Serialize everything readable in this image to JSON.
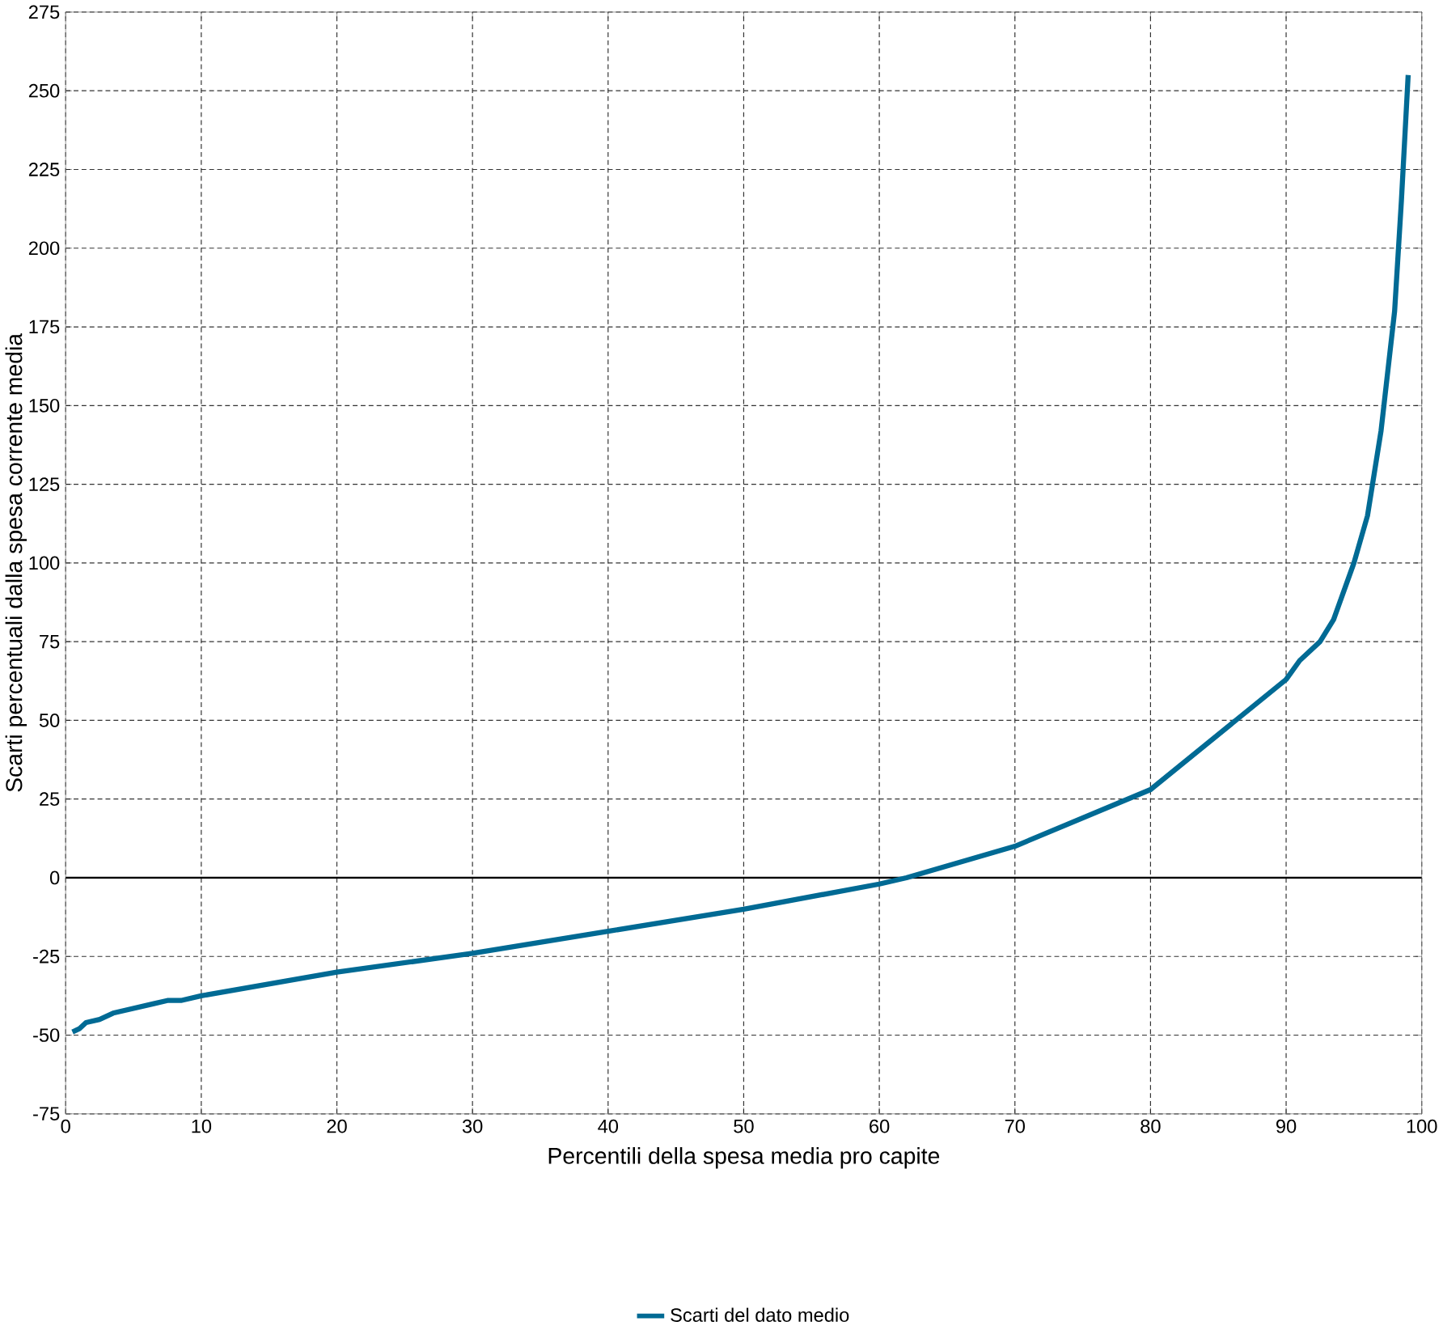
{
  "chart_data": {
    "type": "line",
    "xlabel": "Percentili della spesa media pro capite",
    "ylabel": "Scarti percentuali dalla spesa corrente media",
    "xlim": [
      0,
      100
    ],
    "xticks": [
      0,
      10,
      20,
      30,
      40,
      50,
      60,
      70,
      80,
      90,
      100
    ],
    "ylim": [
      -75,
      275
    ],
    "yticks": [
      -75,
      -50,
      -25,
      0,
      25,
      50,
      75,
      100,
      125,
      150,
      175,
      200,
      225,
      250,
      275
    ],
    "grid": true,
    "legend": "bottom",
    "marker": "none",
    "line_style": "solid",
    "ref_lines": [
      {
        "axis": "y",
        "value": 0,
        "color": "#000000"
      }
    ],
    "series": [
      {
        "name": "Scarti del dato medio",
        "color": "#006a94",
        "x": [
          0.5,
          1,
          1.5,
          2.5,
          3.5,
          5,
          6.5,
          7.5,
          8.5,
          10,
          20,
          30,
          40,
          50,
          60,
          62,
          70,
          80,
          90,
          91,
          92.5,
          93.5,
          95,
          96,
          97,
          98,
          98.5,
          99
        ],
        "values": [
          -49,
          -48,
          -46,
          -45,
          -43,
          -41.5,
          -40,
          -39,
          -39,
          -37.5,
          -30,
          -24,
          -17,
          -10,
          -2,
          0,
          10,
          28,
          63,
          69,
          75,
          82,
          100,
          115,
          142,
          180,
          215,
          255
        ]
      }
    ]
  }
}
